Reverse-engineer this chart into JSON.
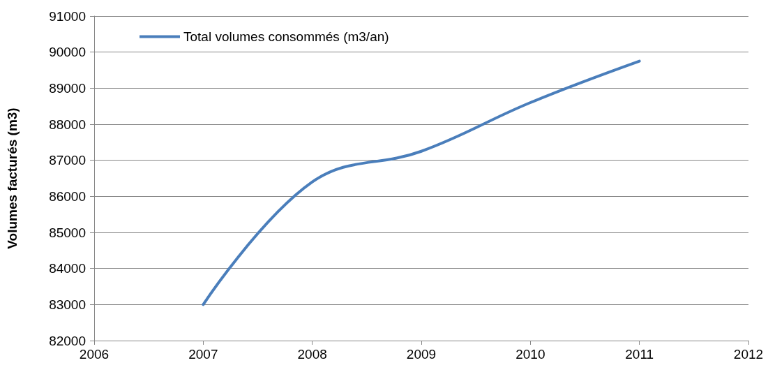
{
  "chart_data": {
    "type": "line",
    "ylabel": "Volumes facturés (m3)",
    "x": [
      2007,
      2008,
      2009,
      2010,
      2011
    ],
    "series": [
      {
        "name": "Total volumes consommés (m3/an)",
        "color": "#4a7ebb",
        "values": [
          83000,
          86400,
          87250,
          88600,
          89750
        ]
      }
    ],
    "xlim": [
      2006,
      2012
    ],
    "xticks": [
      2006,
      2007,
      2008,
      2009,
      2010,
      2011,
      2012
    ],
    "ylim": [
      82000,
      91000
    ],
    "yticks": [
      82000,
      83000,
      84000,
      85000,
      86000,
      87000,
      88000,
      89000,
      90000,
      91000
    ],
    "grid": "y",
    "legend": "top left",
    "marker": "none",
    "line_style": "solid"
  }
}
